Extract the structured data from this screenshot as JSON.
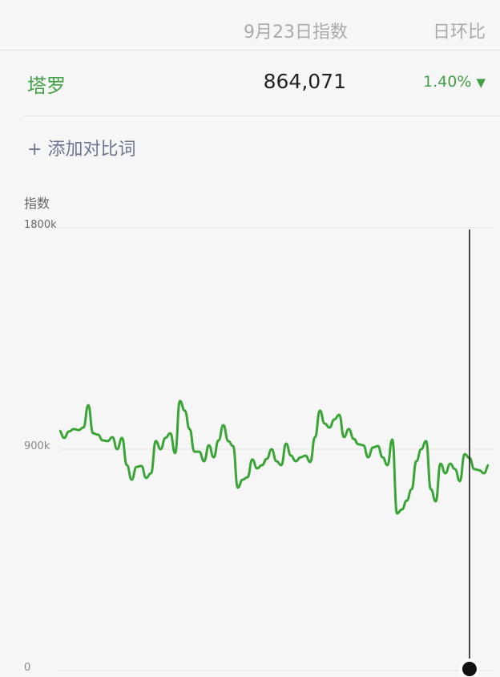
{
  "header": {
    "date_label": "9月23日指数",
    "ratio_label": "日环比"
  },
  "keyword_row": {
    "keyword": "塔罗",
    "value": "864,071",
    "change": "1.40%",
    "change_direction": "down",
    "change_icon": "triangle-down-icon"
  },
  "add_compare": {
    "plus": "+",
    "label": "添加对比词"
  },
  "colors": {
    "line": "#3aa536",
    "keyword": "#43a047",
    "cursor": "#111111"
  },
  "chart_data": {
    "type": "line",
    "ylabel": "指数",
    "yticks": [
      "1800k",
      "900k",
      "0"
    ],
    "ylim": [
      0,
      1800
    ],
    "grid": true,
    "units": "k",
    "values": [
      975,
      946,
      972,
      982,
      978,
      988,
      1079,
      965,
      959,
      936,
      933,
      949,
      900,
      946,
      835,
      776,
      828,
      832,
      783,
      802,
      933,
      900,
      946,
      965,
      884,
      1096,
      1057,
      982,
      890,
      890,
      851,
      916,
      867,
      936,
      998,
      933,
      913,
      744,
      776,
      786,
      858,
      822,
      835,
      861,
      900,
      851,
      835,
      923,
      874,
      851,
      867,
      874,
      848,
      949,
      1057,
      1004,
      988,
      1021,
      1040,
      949,
      982,
      942,
      920,
      916,
      867,
      907,
      913,
      867,
      835,
      939,
      639,
      655,
      691,
      737,
      851,
      900,
      933,
      737,
      688,
      841,
      802,
      841,
      819,
      770,
      880,
      864,
      819,
      815,
      802,
      835
    ],
    "cursor_index": 85
  }
}
